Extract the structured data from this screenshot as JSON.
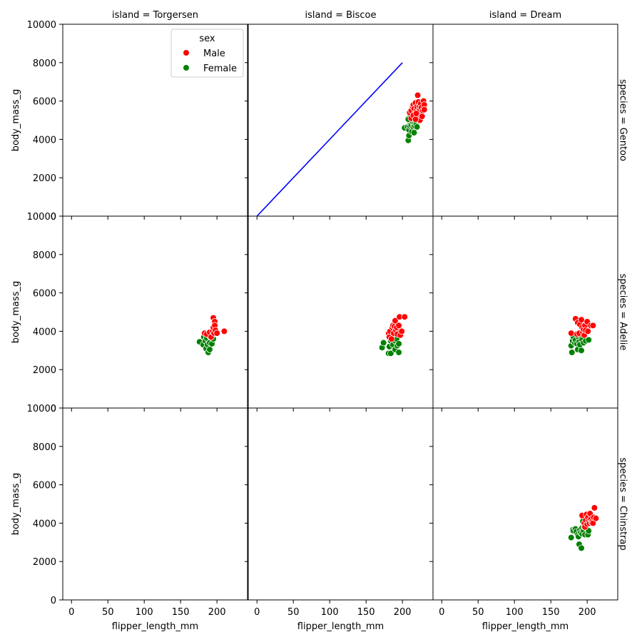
{
  "chart_data": {
    "type": "scatter",
    "xlabel": "flipper_length_mm",
    "ylabel": "body_mass_g",
    "xlim": [
      -12,
      242
    ],
    "ylim": [
      0,
      10000
    ],
    "x_ticks": [
      0,
      50,
      100,
      150,
      200
    ],
    "y_ticks": [
      0,
      2000,
      4000,
      6000,
      8000,
      10000
    ],
    "col_var": "island",
    "row_var": "species",
    "columns": [
      "Torgersen",
      "Biscoe",
      "Dream"
    ],
    "rows": [
      "Gentoo",
      "Adelie",
      "Chinstrap"
    ],
    "col_titles": [
      "island = Torgersen",
      "island = Biscoe",
      "island = Dream"
    ],
    "row_titles": [
      "species = Gentoo",
      "species = Adelie",
      "species = Chinstrap"
    ],
    "hue_var": "sex",
    "legend": {
      "title": "sex",
      "placement": "upper-center",
      "entries": [
        {
          "label": "Male",
          "color": "#ff0000"
        },
        {
          "label": "Female",
          "color": "#008000"
        }
      ]
    },
    "colors": {
      "Male": "#ff0000",
      "Female": "#008000",
      "line": "#0000ff"
    },
    "annotations": [
      {
        "type": "line",
        "panel": [
          "Gentoo",
          "Biscoe"
        ],
        "x": [
          0,
          200
        ],
        "y": [
          0,
          8000
        ],
        "color": "#0000ff"
      }
    ],
    "panels": [
      {
        "row": "Gentoo",
        "col": "Torgersen",
        "Male": [],
        "Female": []
      },
      {
        "row": "Gentoo",
        "col": "Biscoe",
        "Male": [
          [
            210,
            5400
          ],
          [
            212,
            5500
          ],
          [
            214,
            5700
          ],
          [
            215,
            5800
          ],
          [
            216,
            5600
          ],
          [
            217,
            5350
          ],
          [
            218,
            5900
          ],
          [
            219,
            5500
          ],
          [
            220,
            5700
          ],
          [
            220,
            5200
          ],
          [
            221,
            6300
          ],
          [
            222,
            5950
          ],
          [
            222,
            5400
          ],
          [
            223,
            5700
          ],
          [
            224,
            5550
          ],
          [
            224,
            5000
          ],
          [
            225,
            5850
          ],
          [
            226,
            5650
          ],
          [
            227,
            5200
          ],
          [
            228,
            5500
          ],
          [
            229,
            6000
          ],
          [
            230,
            5800
          ],
          [
            230,
            5550
          ],
          [
            212,
            5100
          ],
          [
            215,
            5250
          ],
          [
            218,
            5050
          ],
          [
            219,
            5350
          ]
        ],
        "Female": [
          [
            203,
            4600
          ],
          [
            207,
            4650
          ],
          [
            208,
            3950
          ],
          [
            209,
            4200
          ],
          [
            209,
            4500
          ],
          [
            210,
            4700
          ],
          [
            211,
            4850
          ],
          [
            212,
            4750
          ],
          [
            213,
            5100
          ],
          [
            213,
            4400
          ],
          [
            214,
            4900
          ],
          [
            215,
            4650
          ],
          [
            215,
            5200
          ],
          [
            216,
            4850
          ],
          [
            216,
            4350
          ],
          [
            217,
            4700
          ],
          [
            218,
            4950
          ],
          [
            219,
            4800
          ],
          [
            220,
            4650
          ],
          [
            222,
            5000
          ],
          [
            208,
            5050
          ],
          [
            211,
            5250
          ]
        ]
      },
      {
        "row": "Gentoo",
        "col": "Dream",
        "Male": [],
        "Female": []
      },
      {
        "row": "Adelie",
        "col": "Torgersen",
        "Male": [
          [
            183,
            3900
          ],
          [
            186,
            3850
          ],
          [
            190,
            3950
          ],
          [
            192,
            3700
          ],
          [
            194,
            4000
          ],
          [
            195,
            4200
          ],
          [
            195,
            4700
          ],
          [
            196,
            3900
          ],
          [
            197,
            4500
          ],
          [
            197,
            4300
          ],
          [
            198,
            4050
          ],
          [
            200,
            3900
          ],
          [
            210,
            4000
          ]
        ],
        "Female": [
          [
            176,
            3450
          ],
          [
            181,
            3300
          ],
          [
            182,
            3700
          ],
          [
            184,
            3500
          ],
          [
            185,
            3100
          ],
          [
            186,
            3650
          ],
          [
            187,
            3300
          ],
          [
            188,
            2900
          ],
          [
            189,
            3800
          ],
          [
            190,
            3400
          ],
          [
            190,
            3050
          ],
          [
            191,
            3700
          ],
          [
            193,
            3350
          ],
          [
            195,
            3600
          ]
        ]
      },
      {
        "row": "Adelie",
        "col": "Biscoe",
        "Male": [
          [
            181,
            3900
          ],
          [
            182,
            3700
          ],
          [
            183,
            4000
          ],
          [
            185,
            3600
          ],
          [
            186,
            4200
          ],
          [
            187,
            4300
          ],
          [
            188,
            3900
          ],
          [
            189,
            4250
          ],
          [
            190,
            4550
          ],
          [
            191,
            4050
          ],
          [
            192,
            4200
          ],
          [
            193,
            3850
          ],
          [
            195,
            4300
          ],
          [
            196,
            4750
          ],
          [
            197,
            3800
          ],
          [
            199,
            4000
          ],
          [
            203,
            4750
          ]
        ],
        "Female": [
          [
            172,
            3150
          ],
          [
            174,
            3400
          ],
          [
            181,
            2850
          ],
          [
            182,
            3200
          ],
          [
            184,
            3500
          ],
          [
            184,
            2850
          ],
          [
            185,
            3650
          ],
          [
            187,
            3300
          ],
          [
            188,
            3850
          ],
          [
            190,
            3500
          ],
          [
            190,
            3050
          ],
          [
            191,
            3900
          ],
          [
            192,
            3600
          ],
          [
            193,
            3250
          ],
          [
            195,
            2900
          ],
          [
            195,
            3350
          ],
          [
            198,
            3800
          ]
        ]
      },
      {
        "row": "Adelie",
        "col": "Dream",
        "Male": [
          [
            178,
            3900
          ],
          [
            184,
            4650
          ],
          [
            186,
            3850
          ],
          [
            187,
            4450
          ],
          [
            189,
            3900
          ],
          [
            190,
            4350
          ],
          [
            192,
            4600
          ],
          [
            193,
            4200
          ],
          [
            194,
            3950
          ],
          [
            195,
            4100
          ],
          [
            196,
            3800
          ],
          [
            197,
            4300
          ],
          [
            198,
            4050
          ],
          [
            200,
            4500
          ],
          [
            201,
            4000
          ],
          [
            205,
            4300
          ],
          [
            208,
            4300
          ]
        ],
        "Female": [
          [
            178,
            3250
          ],
          [
            179,
            2900
          ],
          [
            180,
            3500
          ],
          [
            181,
            3700
          ],
          [
            183,
            3400
          ],
          [
            184,
            3550
          ],
          [
            186,
            3350
          ],
          [
            187,
            3050
          ],
          [
            188,
            3700
          ],
          [
            189,
            3450
          ],
          [
            190,
            3300
          ],
          [
            191,
            3800
          ],
          [
            192,
            3000
          ],
          [
            193,
            3550
          ],
          [
            195,
            3400
          ],
          [
            198,
            3500
          ],
          [
            202,
            3550
          ]
        ]
      },
      {
        "row": "Chinstrap",
        "col": "Torgersen",
        "Male": [],
        "Female": []
      },
      {
        "row": "Chinstrap",
        "col": "Biscoe",
        "Male": [],
        "Female": []
      },
      {
        "row": "Chinstrap",
        "col": "Dream",
        "Male": [
          [
            193,
            4400
          ],
          [
            196,
            4000
          ],
          [
            197,
            3800
          ],
          [
            198,
            4150
          ],
          [
            199,
            4450
          ],
          [
            200,
            3950
          ],
          [
            201,
            4300
          ],
          [
            202,
            4100
          ],
          [
            203,
            4000
          ],
          [
            204,
            4500
          ],
          [
            205,
            4200
          ],
          [
            206,
            4050
          ],
          [
            207,
            4100
          ],
          [
            208,
            4000
          ],
          [
            209,
            4300
          ],
          [
            210,
            4800
          ],
          [
            212,
            4250
          ]
        ],
        "Female": [
          [
            178,
            3250
          ],
          [
            180,
            3650
          ],
          [
            181,
            3600
          ],
          [
            184,
            3700
          ],
          [
            185,
            3550
          ],
          [
            187,
            3400
          ],
          [
            188,
            3300
          ],
          [
            189,
            2900
          ],
          [
            190,
            3650
          ],
          [
            191,
            3500
          ],
          [
            192,
            2700
          ],
          [
            193,
            3450
          ],
          [
            193,
            3750
          ],
          [
            194,
            4100
          ],
          [
            195,
            3600
          ],
          [
            196,
            3800
          ],
          [
            197,
            3400
          ],
          [
            199,
            3750
          ],
          [
            201,
            3400
          ],
          [
            202,
            3600
          ]
        ]
      }
    ]
  }
}
